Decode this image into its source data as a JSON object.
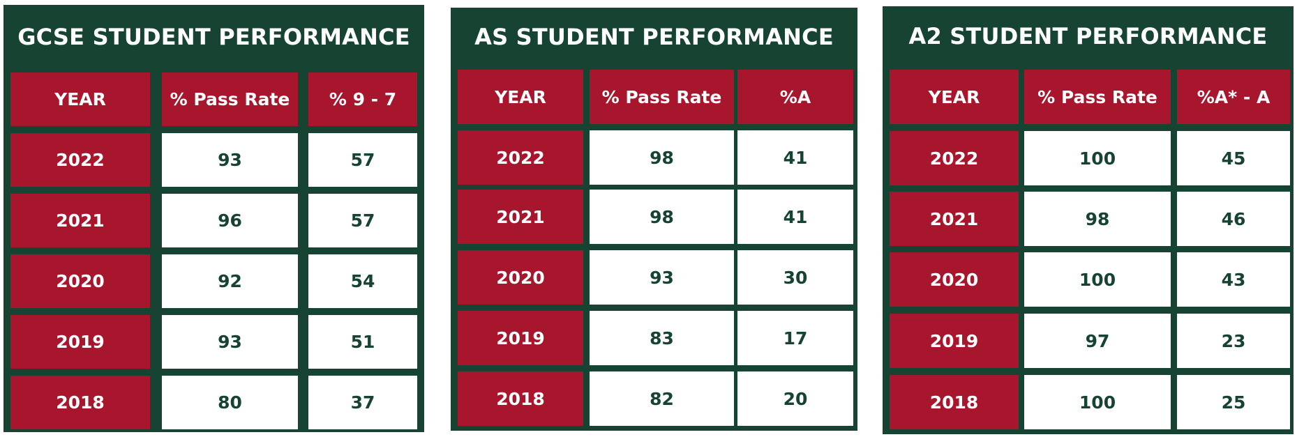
{
  "colors": {
    "green": "#164332",
    "red": "#a8162e",
    "white": "#ffffff"
  },
  "chart_data": [
    {
      "type": "table",
      "title": "GCSE STUDENT PERFORMANCE",
      "columns": [
        "YEAR",
        "% Pass Rate",
        "% 9 - 7"
      ],
      "rows": [
        [
          "2022",
          "93",
          "57"
        ],
        [
          "2021",
          "96",
          "57"
        ],
        [
          "2020",
          "92",
          "54"
        ],
        [
          "2019",
          "93",
          "51"
        ],
        [
          "2018",
          "80",
          "37"
        ]
      ]
    },
    {
      "type": "table",
      "title": "AS STUDENT PERFORMANCE",
      "columns": [
        "YEAR",
        "% Pass Rate",
        "%A"
      ],
      "rows": [
        [
          "2022",
          "98",
          "41"
        ],
        [
          "2021",
          "98",
          "41"
        ],
        [
          "2020",
          "93",
          "30"
        ],
        [
          "2019",
          "83",
          "17"
        ],
        [
          "2018",
          "82",
          "20"
        ]
      ]
    },
    {
      "type": "table",
      "title": "A2 STUDENT PERFORMANCE",
      "columns": [
        "YEAR",
        "% Pass Rate",
        "%A* - A"
      ],
      "rows": [
        [
          "2022",
          "100",
          "45"
        ],
        [
          "2021",
          "98",
          "46"
        ],
        [
          "2020",
          "100",
          "43"
        ],
        [
          "2019",
          "97",
          "23"
        ],
        [
          "2018",
          "100",
          "25"
        ]
      ]
    }
  ]
}
